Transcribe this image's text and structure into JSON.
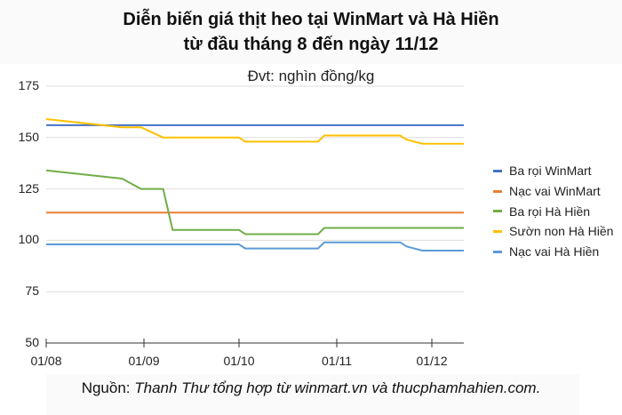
{
  "title_line1": "Diễn biến giá thịt heo tại WinMart và Hà Hiền",
  "title_line2": "từ đầu tháng 8 đến ngày 11/12",
  "unit_label": "Đvt: nghìn đồng/kg",
  "source_prefix": "Nguồn: ",
  "source_text": "Thanh Thư tổng hợp từ winmart.vn và thucphamhahien.com.",
  "chart_data": {
    "type": "line",
    "title": "Diễn biến giá thịt heo tại WinMart và Hà Hiền từ đầu tháng 8 đến ngày 11/12",
    "subtitle": "Đvt: nghìn đồng/kg",
    "xlabel": "",
    "ylabel": "nghìn đồng/kg",
    "ylim": [
      50,
      175
    ],
    "yticks": [
      50,
      75,
      100,
      125,
      150,
      175
    ],
    "xticks": [
      "01/08",
      "01/09",
      "01/10",
      "01/11",
      "01/12"
    ],
    "grid": true,
    "legend_position": "right",
    "x": [
      "01/08",
      "25/08",
      "31/08",
      "07/09",
      "10/09",
      "01/10",
      "03/10",
      "26/10",
      "28/10",
      "21/11",
      "23/11",
      "28/11",
      "11/12"
    ],
    "series": [
      {
        "name": "Ba rọi WinMart",
        "color": "#4472C4",
        "values": [
          156,
          156,
          156,
          156,
          156,
          156,
          156,
          156,
          156,
          156,
          156,
          156,
          156
        ]
      },
      {
        "name": "Nạc vai WinMart",
        "color": "#ED7D31",
        "values": [
          113.5,
          113.5,
          113.5,
          113.5,
          113.5,
          113.5,
          113.5,
          113.5,
          113.5,
          113.5,
          113.5,
          113.5,
          113.5
        ]
      },
      {
        "name": "Ba rọi Hà Hiền",
        "color": "#70AD47",
        "values": [
          134,
          130,
          125,
          125,
          105,
          105,
          103,
          103,
          106,
          106,
          106,
          106,
          106
        ]
      },
      {
        "name": "Sườn non Hà Hiền",
        "color": "#FFC000",
        "values": [
          159,
          155,
          155,
          150,
          150,
          150,
          148,
          148,
          151,
          151,
          149,
          147,
          147
        ]
      },
      {
        "name": "Nạc vai Hà Hiền",
        "color": "#5B9BD5",
        "values": [
          98,
          98,
          98,
          98,
          98,
          98,
          96,
          96,
          99,
          99,
          97,
          95,
          95
        ]
      }
    ]
  }
}
